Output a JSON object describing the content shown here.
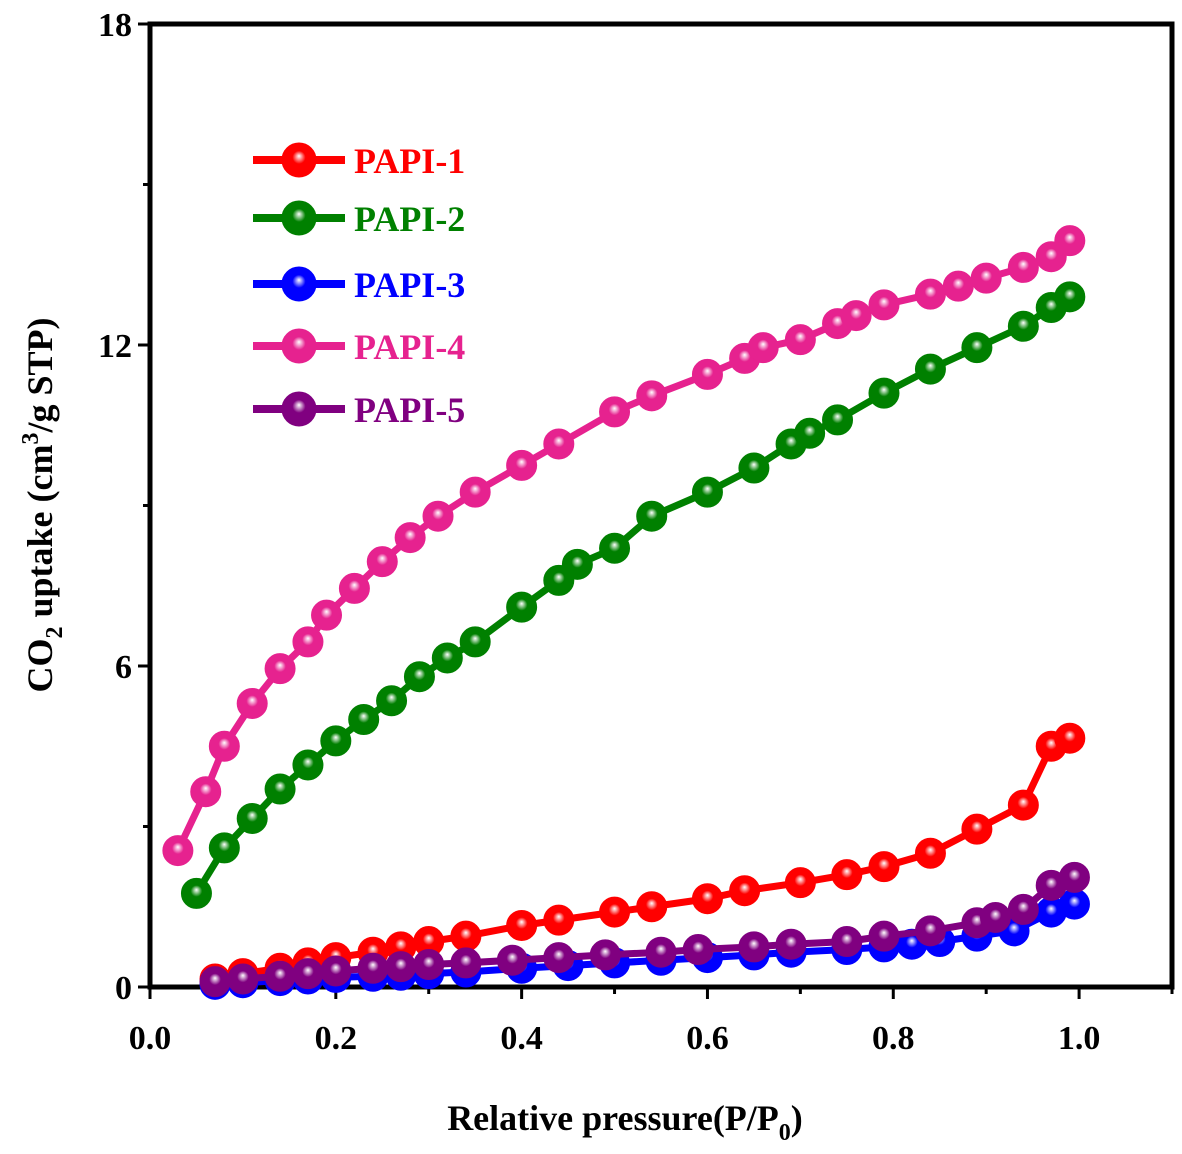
{
  "chart_data": {
    "type": "line",
    "xlabel": "Relative pressure",
    "xlabel_unit": "(P/P",
    "xlabel_sub": "0",
    "xlabel_close": ")",
    "ylabel_pre": "CO",
    "ylabel_sub": "2",
    "ylabel_mid": " uptake (cm",
    "ylabel_sup": "3",
    "ylabel_post": "/g STP)",
    "xlim": [
      0.0,
      1.1
    ],
    "ylim": [
      0,
      18
    ],
    "x_ticks": [
      0.0,
      0.2,
      0.4,
      0.6,
      0.8,
      1.0
    ],
    "x_tick_labels": [
      "0.0",
      "0.2",
      "0.4",
      "0.6",
      "0.8",
      "1.0"
    ],
    "y_ticks": [
      0,
      6,
      12,
      18
    ],
    "y_tick_labels": [
      "0",
      "6",
      "12",
      "18"
    ],
    "grid": false,
    "legend_position": "top-left",
    "series": [
      {
        "name": "PAPI-1",
        "color": "#ff0000",
        "x": [
          0.07,
          0.1,
          0.14,
          0.17,
          0.2,
          0.24,
          0.27,
          0.3,
          0.34,
          0.4,
          0.44,
          0.5,
          0.54,
          0.6,
          0.64,
          0.7,
          0.75,
          0.79,
          0.84,
          0.89,
          0.94,
          0.97,
          0.99
        ],
        "y": [
          0.15,
          0.25,
          0.35,
          0.45,
          0.55,
          0.65,
          0.75,
          0.85,
          0.95,
          1.15,
          1.25,
          1.4,
          1.5,
          1.65,
          1.8,
          1.95,
          2.1,
          2.25,
          2.5,
          2.95,
          3.4,
          4.5,
          4.65
        ]
      },
      {
        "name": "PAPI-2",
        "color": "#008000",
        "x": [
          0.05,
          0.08,
          0.11,
          0.14,
          0.17,
          0.2,
          0.23,
          0.26,
          0.29,
          0.32,
          0.35,
          0.4,
          0.44,
          0.46,
          0.5,
          0.54,
          0.6,
          0.65,
          0.69,
          0.71,
          0.74,
          0.79,
          0.84,
          0.89,
          0.94,
          0.97,
          0.99
        ],
        "y": [
          1.75,
          2.6,
          3.15,
          3.7,
          4.15,
          4.6,
          5.0,
          5.35,
          5.8,
          6.15,
          6.45,
          7.1,
          7.6,
          7.9,
          8.2,
          8.8,
          9.25,
          9.7,
          10.15,
          10.35,
          10.6,
          11.1,
          11.55,
          11.95,
          12.35,
          12.7,
          12.9
        ]
      },
      {
        "name": "PAPI-3",
        "color": "#0000ff",
        "x": [
          0.07,
          0.1,
          0.14,
          0.17,
          0.2,
          0.24,
          0.27,
          0.3,
          0.34,
          0.4,
          0.45,
          0.5,
          0.55,
          0.6,
          0.65,
          0.69,
          0.75,
          0.79,
          0.82,
          0.85,
          0.89,
          0.93,
          0.97,
          0.995
        ],
        "y": [
          0.05,
          0.08,
          0.12,
          0.15,
          0.18,
          0.2,
          0.22,
          0.25,
          0.28,
          0.35,
          0.4,
          0.45,
          0.5,
          0.55,
          0.6,
          0.65,
          0.7,
          0.75,
          0.8,
          0.85,
          0.95,
          1.05,
          1.4,
          1.55
        ]
      },
      {
        "name": "PAPI-4",
        "color": "#e6228f",
        "x": [
          0.03,
          0.06,
          0.08,
          0.11,
          0.14,
          0.17,
          0.19,
          0.22,
          0.25,
          0.28,
          0.31,
          0.35,
          0.4,
          0.44,
          0.5,
          0.54,
          0.6,
          0.64,
          0.66,
          0.7,
          0.74,
          0.76,
          0.79,
          0.84,
          0.87,
          0.9,
          0.94,
          0.97,
          0.99
        ],
        "y": [
          2.55,
          3.65,
          4.5,
          5.3,
          5.95,
          6.45,
          6.95,
          7.45,
          7.95,
          8.4,
          8.8,
          9.25,
          9.75,
          10.15,
          10.75,
          11.05,
          11.45,
          11.75,
          11.95,
          12.1,
          12.4,
          12.55,
          12.75,
          12.95,
          13.1,
          13.25,
          13.45,
          13.65,
          13.95
        ]
      },
      {
        "name": "PAPI-5",
        "color": "#800080",
        "x": [
          0.07,
          0.1,
          0.14,
          0.17,
          0.2,
          0.24,
          0.27,
          0.3,
          0.34,
          0.39,
          0.44,
          0.49,
          0.55,
          0.59,
          0.65,
          0.69,
          0.75,
          0.79,
          0.84,
          0.89,
          0.91,
          0.94,
          0.97,
          0.995
        ],
        "y": [
          0.1,
          0.15,
          0.2,
          0.25,
          0.3,
          0.35,
          0.38,
          0.42,
          0.45,
          0.5,
          0.55,
          0.6,
          0.65,
          0.7,
          0.75,
          0.8,
          0.85,
          0.95,
          1.05,
          1.2,
          1.3,
          1.45,
          1.9,
          2.05
        ]
      }
    ]
  }
}
